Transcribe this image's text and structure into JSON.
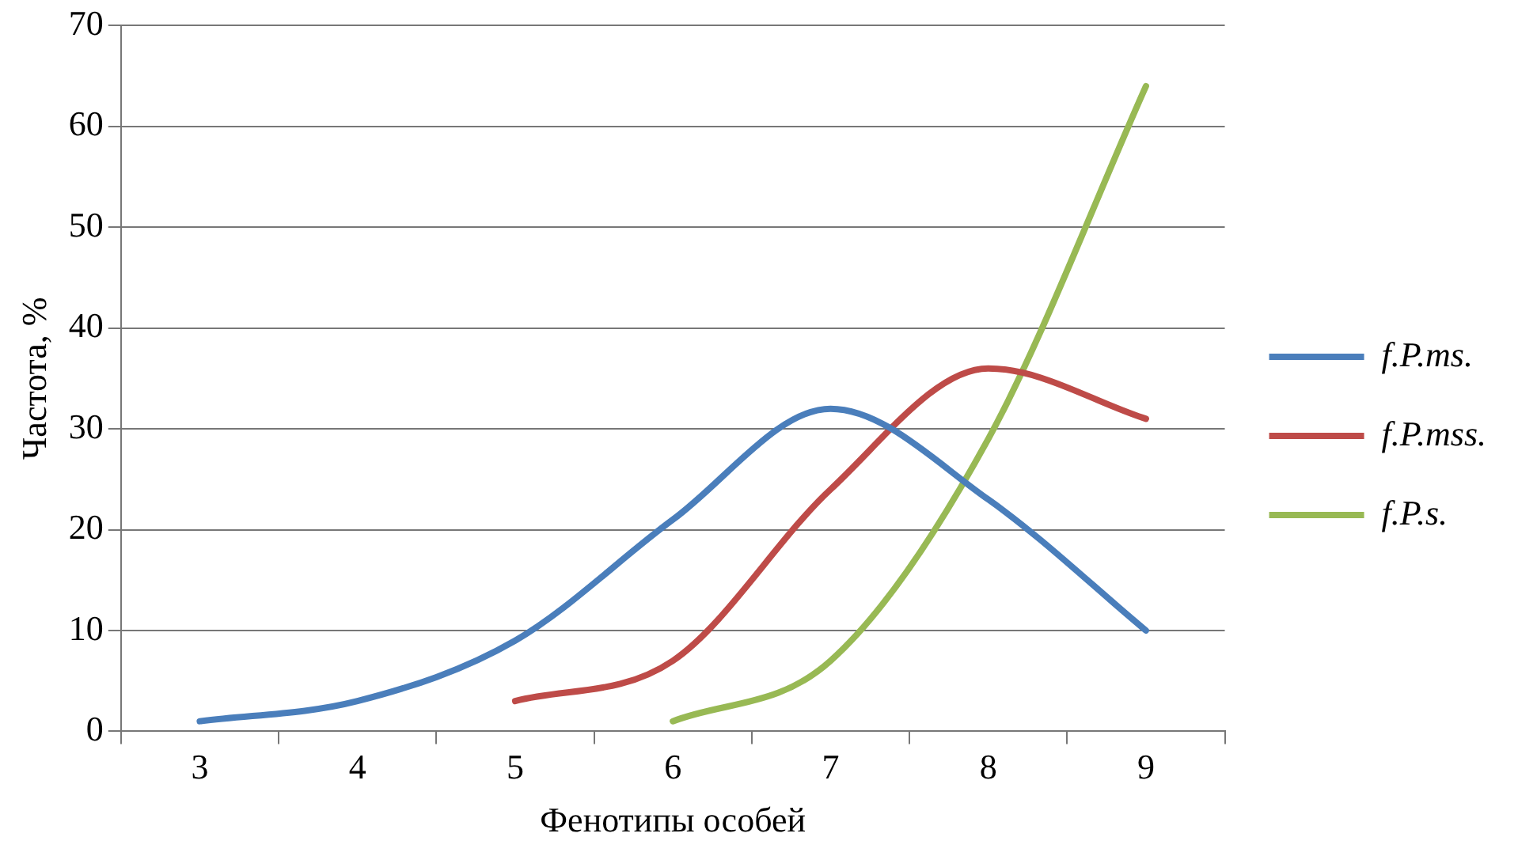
{
  "chart_data": {
    "type": "line",
    "xlabel": "Фенотипы особей",
    "ylabel": "Частота, %",
    "categories": [
      "3",
      "4",
      "5",
      "6",
      "7",
      "8",
      "9"
    ],
    "series": [
      {
        "name": "f.P.ms.",
        "color": "#4a7ebb",
        "values": [
          1,
          3,
          9,
          21,
          32,
          23,
          10
        ]
      },
      {
        "name": "f.P.mss.",
        "color": "#be4b48",
        "values": [
          null,
          null,
          3,
          7,
          24,
          36,
          31
        ]
      },
      {
        "name": "f.P.s.",
        "color": "#98b954",
        "values": [
          null,
          null,
          null,
          1,
          7,
          29,
          64
        ]
      }
    ],
    "ylim": [
      0,
      70
    ],
    "yticks": [
      0,
      10,
      20,
      30,
      40,
      50,
      60,
      70
    ],
    "grid": "y",
    "legend": "right",
    "marker": "none",
    "line_style": "solid"
  }
}
